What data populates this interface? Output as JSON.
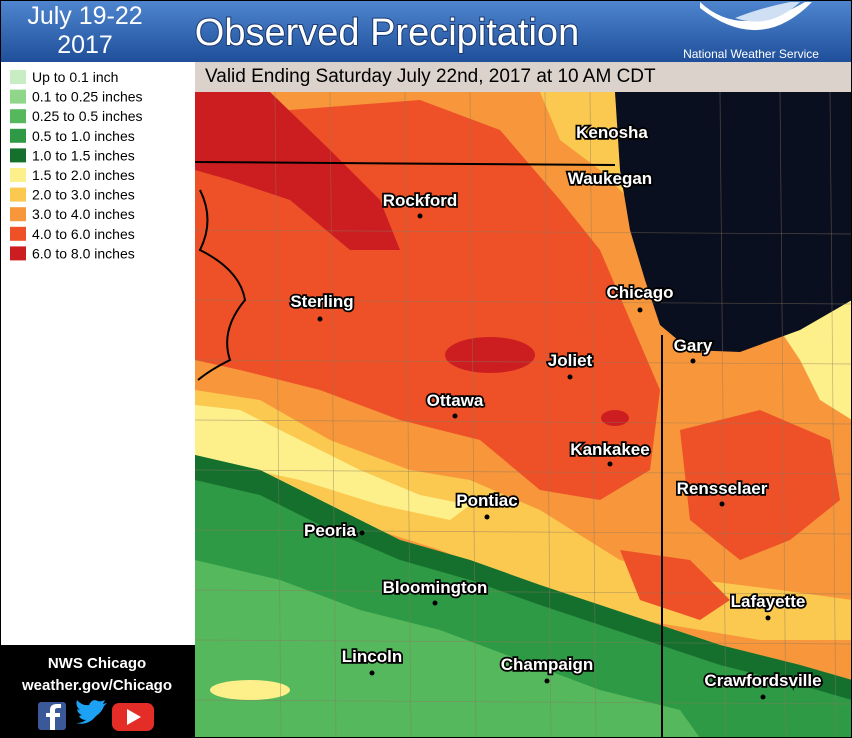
{
  "header": {
    "date_lines": [
      "July 19-22",
      "2017"
    ],
    "title": "Observed Precipitation",
    "agency": "National Weather Service"
  },
  "subtitle": "Valid Ending Saturday July 22nd, 2017 at 10 AM CDT",
  "legend": [
    {
      "label": "Up to 0.1 inch",
      "color": "#c8ecc4"
    },
    {
      "label": "0.1 to 0.25 inches",
      "color": "#8fd68a"
    },
    {
      "label": "0.25 to 0.5 inches",
      "color": "#55b85c"
    },
    {
      "label": "0.5 to 1.0 inches",
      "color": "#2f9a45"
    },
    {
      "label": "1.0 to 1.5 inches",
      "color": "#15702d"
    },
    {
      "label": "1.5 to 2.0 inches",
      "color": "#fdf08a"
    },
    {
      "label": "2.0 to 3.0 inches",
      "color": "#fbc850"
    },
    {
      "label": "3.0 to 4.0 inches",
      "color": "#f7963a"
    },
    {
      "label": "4.0 to 6.0 inches",
      "color": "#ee5128"
    },
    {
      "label": "6.0 to 8.0 inches",
      "color": "#cc1e20"
    }
  ],
  "cities": [
    "Kenosha",
    "Waukegan",
    "Rockford",
    "Chicago",
    "Sterling",
    "Gary",
    "Joliet",
    "Ottawa",
    "Kankakee",
    "Rensselaer",
    "Pontiac",
    "Peoria",
    "Bloomington",
    "Lafayette",
    "Lincoln",
    "Champaign",
    "Crawfordsville"
  ],
  "footer": {
    "office": "NWS Chicago",
    "url": "weather.gov/Chicago"
  }
}
